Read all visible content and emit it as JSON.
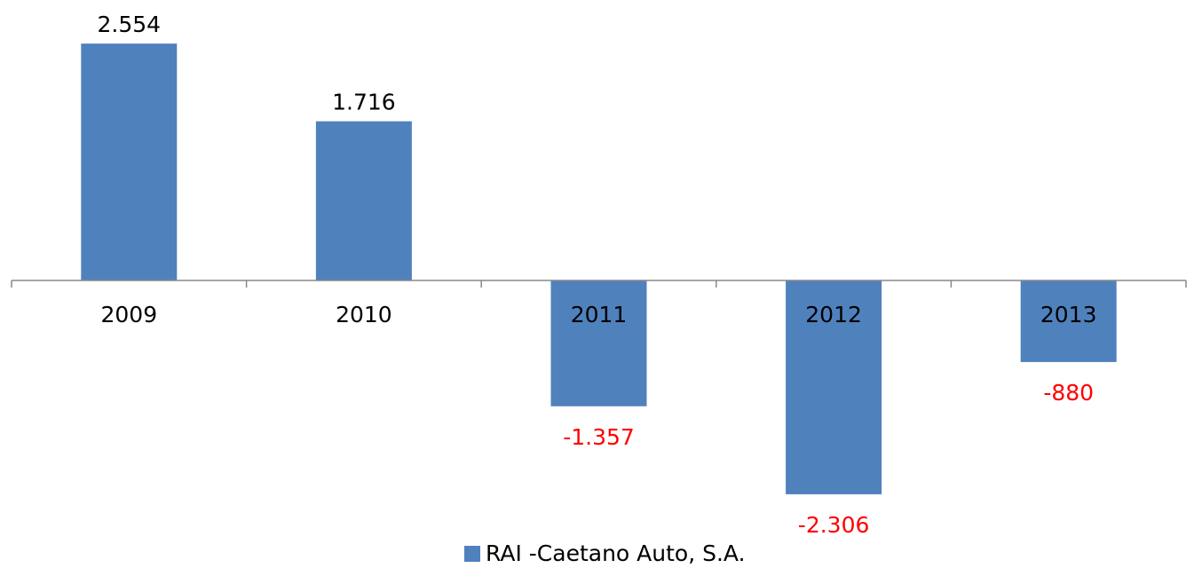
{
  "chart_data": {
    "type": "bar",
    "categories": [
      "2009",
      "2010",
      "2011",
      "2012",
      "2013"
    ],
    "series": [
      {
        "name": "RAI -Caetano Auto, S.A.",
        "color": "#4f81bd",
        "values": [
          2554,
          1716,
          -1357,
          -2306,
          -880
        ],
        "value_labels": [
          "2.554",
          "1.716",
          "-1.357",
          "-2.306",
          "-880"
        ]
      }
    ],
    "ylim": [
      -2500,
      2800
    ],
    "negative_label_color": "#ff0000",
    "legend": "bottom"
  }
}
